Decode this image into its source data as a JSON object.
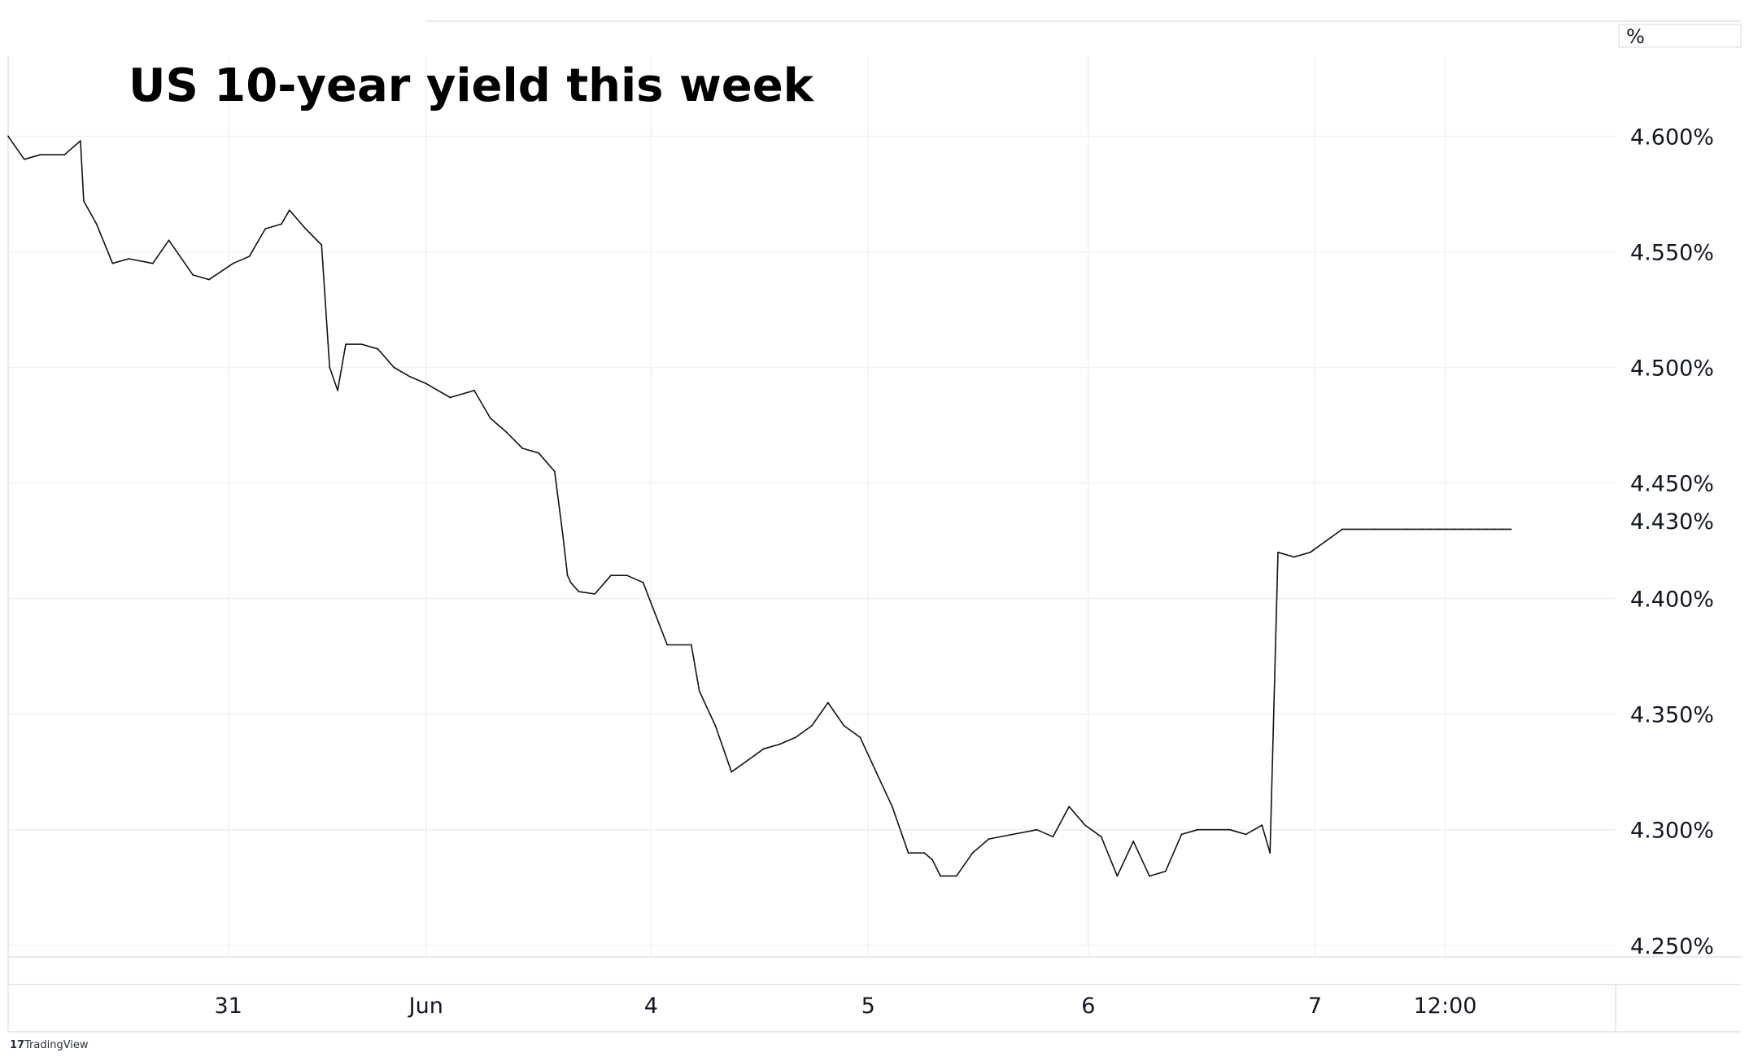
{
  "chart_data": {
    "type": "line",
    "title": "US 10-year yield this week",
    "unit": "%",
    "last_value_label": "4.430%",
    "ylim": [
      4.245,
      4.635
    ],
    "grid": true,
    "x_axis_labels": [
      "31",
      "Jun",
      "4",
      "5",
      "6",
      "7",
      "12:00"
    ],
    "y_axis_labels": [
      "4.600%",
      "4.550%",
      "4.500%",
      "4.450%",
      "4.400%",
      "4.350%",
      "4.300%",
      "4.250%"
    ],
    "y_axis_values": [
      4.6,
      4.55,
      4.5,
      4.45,
      4.4,
      4.35,
      4.3,
      4.25
    ],
    "x_axis_positions": [
      0.137,
      0.26,
      0.4,
      0.535,
      0.672,
      0.813,
      0.894
    ],
    "series": [
      {
        "x": [
          0.0,
          0.01,
          0.02,
          0.035,
          0.045,
          0.047,
          0.055,
          0.065,
          0.075,
          0.09,
          0.1,
          0.115,
          0.125,
          0.14,
          0.15,
          0.16,
          0.17,
          0.175,
          0.185,
          0.195,
          0.2,
          0.205,
          0.21,
          0.22,
          0.23,
          0.24,
          0.25,
          0.26,
          0.275,
          0.29,
          0.3,
          0.31,
          0.32,
          0.33,
          0.34,
          0.345,
          0.348,
          0.35,
          0.355,
          0.365,
          0.375,
          0.385,
          0.395,
          0.41,
          0.425,
          0.43,
          0.44,
          0.45,
          0.46,
          0.47,
          0.48,
          0.49,
          0.5,
          0.51,
          0.52,
          0.53,
          0.54,
          0.55,
          0.56,
          0.57,
          0.575,
          0.58,
          0.59,
          0.6,
          0.61,
          0.625,
          0.64,
          0.65,
          0.66,
          0.67,
          0.68,
          0.69,
          0.7,
          0.71,
          0.72,
          0.73,
          0.74,
          0.75,
          0.76,
          0.77,
          0.78,
          0.785,
          0.79,
          0.8,
          0.81,
          0.83,
          0.85,
          0.87,
          0.88,
          0.885,
          0.89,
          0.895,
          0.9,
          0.905,
          0.91,
          0.915,
          0.92,
          0.925,
          0.93,
          0.935
        ],
        "values": [
          4.6,
          4.59,
          4.592,
          4.592,
          4.598,
          4.572,
          4.562,
          4.545,
          4.547,
          4.545,
          4.555,
          4.54,
          4.538,
          4.545,
          4.548,
          4.56,
          4.562,
          4.568,
          4.56,
          4.553,
          4.5,
          4.49,
          4.51,
          4.51,
          4.508,
          4.5,
          4.496,
          4.493,
          4.487,
          4.49,
          4.478,
          4.472,
          4.465,
          4.463,
          4.455,
          4.428,
          4.41,
          4.407,
          4.403,
          4.402,
          4.41,
          4.41,
          4.407,
          4.38,
          4.38,
          4.36,
          4.345,
          4.325,
          4.33,
          4.335,
          4.337,
          4.34,
          4.345,
          4.355,
          4.345,
          4.34,
          4.325,
          4.31,
          4.29,
          4.29,
          4.287,
          4.28,
          4.28,
          4.29,
          4.296,
          4.298,
          4.3,
          4.297,
          4.31,
          4.302,
          4.297,
          4.28,
          4.295,
          4.28,
          4.282,
          4.298,
          4.3,
          4.3,
          4.3,
          4.298,
          4.302,
          4.29,
          4.42,
          4.418,
          4.42,
          4.43,
          4.43,
          4.43,
          4.43,
          4.43,
          4.43,
          4.43,
          4.43,
          4.43,
          4.43,
          4.43,
          4.43,
          4.43,
          4.43,
          4.43
        ]
      }
    ]
  },
  "footer": {
    "brand_text": "TradingView"
  }
}
